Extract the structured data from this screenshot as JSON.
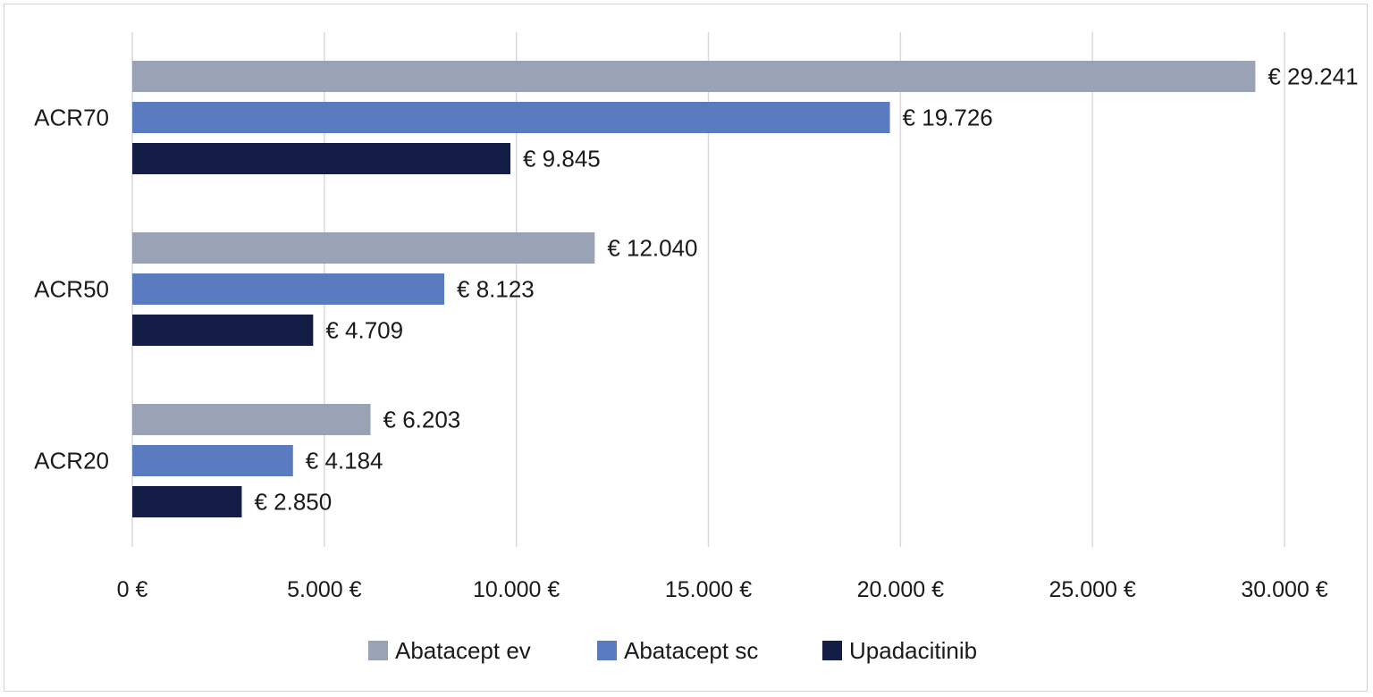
{
  "chart_data": {
    "type": "bar",
    "orientation": "horizontal",
    "title": "",
    "xlabel": "",
    "ylabel": "",
    "categories": [
      "ACR70",
      "ACR50",
      "ACR20"
    ],
    "series": [
      {
        "name": "Abatacept ev",
        "color": "#9aa3b5",
        "values": [
          29241,
          12040,
          6203
        ],
        "labels": [
          "€ 29.241",
          "€ 12.040",
          "€ 6.203"
        ]
      },
      {
        "name": "Abatacept sc",
        "color": "#5b7bc0",
        "values": [
          19726,
          8123,
          4184
        ],
        "labels": [
          "€ 19.726",
          "€ 8.123",
          "€ 4.184"
        ]
      },
      {
        "name": "Upadacitinib",
        "color": "#131d45",
        "values": [
          9845,
          4709,
          2850
        ],
        "labels": [
          "€ 9.845",
          "€ 4.709",
          "€ 2.850"
        ]
      }
    ],
    "xlim": [
      0,
      30000
    ],
    "x_ticks": [
      0,
      5000,
      10000,
      15000,
      20000,
      25000,
      30000
    ],
    "x_tick_labels": [
      "0 €",
      "5.000 €",
      "10.000 €",
      "15.000 €",
      "20.000 €",
      "25.000 €",
      "30.000 €"
    ],
    "grid": true,
    "legend_position": "bottom"
  }
}
